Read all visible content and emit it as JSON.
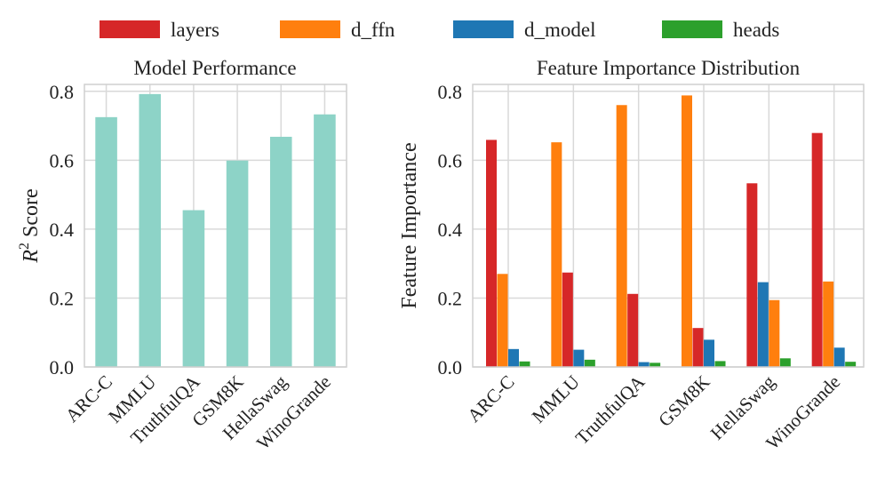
{
  "legend": [
    {
      "label": "layers",
      "color": "#d62728"
    },
    {
      "label": "d_ffn",
      "color": "#ff7f0e"
    },
    {
      "label": "d_model",
      "color": "#1f77b4"
    },
    {
      "label": "heads",
      "color": "#2ca02c"
    }
  ],
  "chart_data": [
    {
      "type": "bar",
      "title": "Model Performance",
      "xlabel": "",
      "ylabel_prefix": "R",
      "ylabel_sup": "2",
      "ylabel_suffix": " Score",
      "categories": [
        "ARC-C",
        "MMLU",
        "TruthfulQA",
        "GSM8K",
        "HellaSwag",
        "WinoGrande"
      ],
      "values": [
        0.725,
        0.792,
        0.455,
        0.599,
        0.668,
        0.733
      ],
      "ylim": [
        0,
        0.82
      ],
      "yticks": [
        "0.0",
        "0.2",
        "0.4",
        "0.6",
        "0.8"
      ],
      "color": "#8dd3c7",
      "grid": true
    },
    {
      "type": "bar",
      "title": "Feature Importance Distribution",
      "xlabel": "",
      "ylabel": "Feature Importance",
      "categories": [
        "ARC-C",
        "MMLU",
        "TruthfulQA",
        "GSM8K",
        "HellaSwag",
        "WinoGrande"
      ],
      "series": [
        {
          "name": "layers",
          "color": "#d62728",
          "values": [
            0.659,
            0.274,
            0.212,
            0.113,
            0.533,
            0.679
          ]
        },
        {
          "name": "d_ffn",
          "color": "#ff7f0e",
          "values": [
            0.27,
            0.652,
            0.76,
            0.788,
            0.194,
            0.248
          ]
        },
        {
          "name": "d_model",
          "color": "#1f77b4",
          "values": [
            0.052,
            0.05,
            0.014,
            0.079,
            0.246,
            0.056
          ]
        },
        {
          "name": "heads",
          "color": "#2ca02c",
          "values": [
            0.016,
            0.021,
            0.012,
            0.017,
            0.025,
            0.015
          ]
        }
      ],
      "bar_order": [
        [
          "layers",
          "d_ffn",
          "d_model",
          "heads"
        ],
        [
          "d_ffn",
          "layers",
          "d_model",
          "heads"
        ],
        [
          "d_ffn",
          "layers",
          "d_model",
          "heads"
        ],
        [
          "d_ffn",
          "layers",
          "d_model",
          "heads"
        ],
        [
          "layers",
          "d_model",
          "d_ffn",
          "heads"
        ],
        [
          "layers",
          "d_ffn",
          "d_model",
          "heads"
        ]
      ],
      "ylim": [
        0,
        0.82
      ],
      "yticks": [
        "0.0",
        "0.2",
        "0.4",
        "0.6",
        "0.8"
      ],
      "grid": true
    }
  ]
}
